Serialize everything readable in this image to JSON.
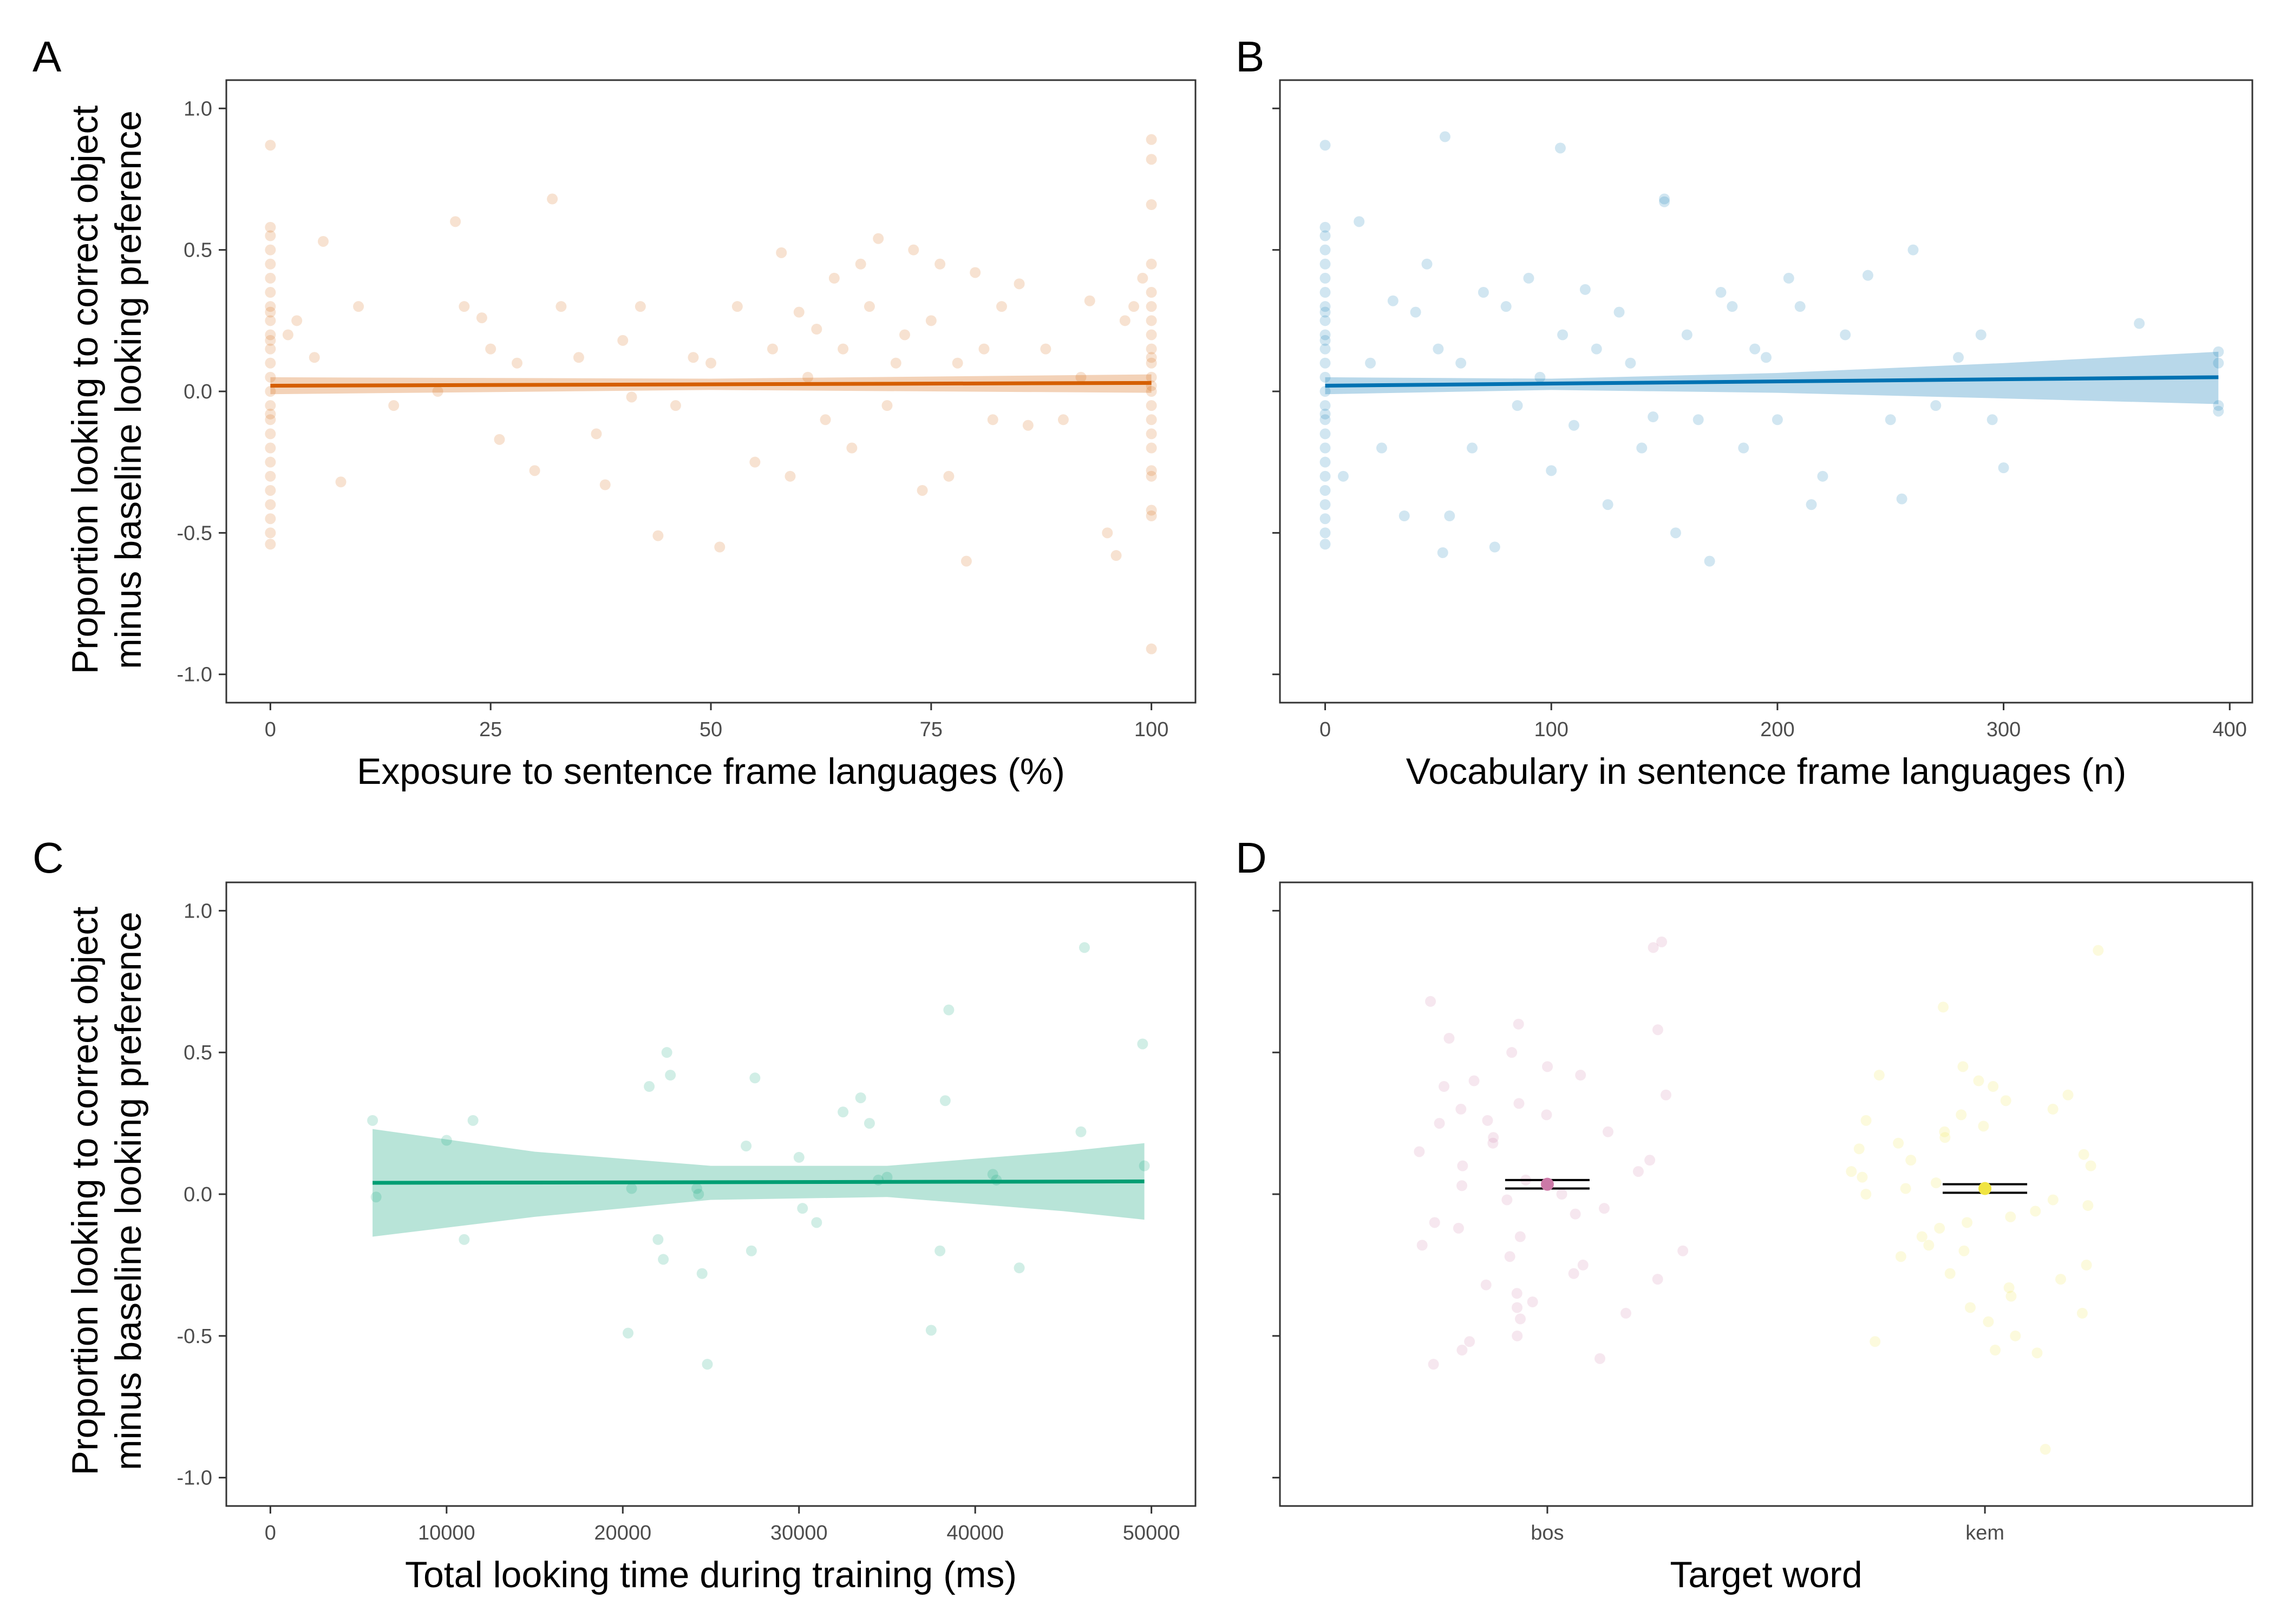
{
  "figure": {
    "panel_letters": [
      "A",
      "B",
      "C",
      "D"
    ],
    "shared_ylabel_line1": "Proportion looking to correct object",
    "shared_ylabel_line2": "minus baseline looking preference"
  },
  "chart_data": [
    {
      "panel": "A",
      "type": "scatter",
      "xlabel": "Exposure to sentence frame languages (%)",
      "ylabel": "Proportion looking to correct object minus baseline looking preference",
      "xlim": [
        -5,
        105
      ],
      "ylim": [
        -1.1,
        1.1
      ],
      "xticks": [
        0,
        25,
        50,
        75,
        100
      ],
      "yticks": [
        -1.0,
        -0.5,
        0.0,
        0.5,
        1.0
      ],
      "ytick_labels": [
        "-1.0",
        "-0.5",
        "0.0",
        "0.5",
        "1.0"
      ],
      "color": "#D55E00",
      "point_alpha": 0.18,
      "grid": false,
      "fit_line": {
        "x": [
          0,
          100
        ],
        "y": [
          0.02,
          0.03
        ]
      },
      "confidence_band": {
        "x": [
          0,
          50,
          100
        ],
        "lower": [
          -0.01,
          0.005,
          -0.005
        ],
        "upper": [
          0.05,
          0.045,
          0.06
        ]
      },
      "points": {
        "x": [
          0,
          0,
          0,
          0,
          0,
          0,
          0,
          0,
          0,
          0,
          0,
          0,
          0,
          0,
          0,
          0,
          0,
          0,
          0,
          0,
          0,
          0,
          0,
          0,
          0,
          0,
          0,
          0,
          2,
          3,
          5,
          6,
          8,
          10,
          14,
          19,
          21,
          22,
          24,
          25,
          26,
          28,
          30,
          32,
          33,
          35,
          37,
          38,
          40,
          41,
          42,
          44,
          46,
          48,
          50,
          51,
          53,
          55,
          57,
          58,
          59,
          60,
          61,
          62,
          63,
          64,
          65,
          66,
          67,
          68,
          69,
          70,
          71,
          72,
          73,
          74,
          75,
          76,
          77,
          78,
          79,
          80,
          81,
          82,
          83,
          85,
          86,
          88,
          90,
          92,
          93,
          95,
          96,
          97,
          98,
          99,
          100,
          100,
          100,
          100,
          100,
          100,
          100,
          100,
          100,
          100,
          100,
          100,
          100,
          100,
          100,
          100,
          100,
          100,
          100,
          100,
          100,
          100,
          100
        ],
        "y": [
          0.87,
          0.58,
          0.55,
          0.5,
          0.45,
          0.4,
          0.35,
          0.3,
          0.25,
          0.2,
          0.15,
          0.1,
          0.05,
          0.0,
          -0.05,
          -0.1,
          -0.15,
          -0.2,
          -0.25,
          -0.3,
          -0.35,
          -0.4,
          -0.45,
          -0.5,
          -0.54,
          0.18,
          -0.08,
          0.28,
          0.2,
          0.25,
          0.12,
          0.53,
          -0.32,
          0.3,
          -0.05,
          0.0,
          0.6,
          0.3,
          0.26,
          0.15,
          -0.17,
          0.1,
          -0.28,
          0.68,
          0.3,
          0.12,
          -0.15,
          -0.33,
          0.18,
          -0.02,
          0.3,
          -0.51,
          -0.05,
          0.12,
          0.1,
          -0.55,
          0.3,
          -0.25,
          0.15,
          0.49,
          -0.3,
          0.28,
          0.05,
          0.22,
          -0.1,
          0.4,
          0.15,
          -0.2,
          0.45,
          0.3,
          0.54,
          -0.05,
          0.1,
          0.2,
          0.5,
          -0.35,
          0.25,
          0.45,
          -0.3,
          0.1,
          -0.6,
          0.42,
          0.15,
          -0.1,
          0.3,
          0.38,
          -0.12,
          0.15,
          -0.1,
          0.05,
          0.32,
          -0.5,
          -0.58,
          0.25,
          0.3,
          0.4,
          0.89,
          0.82,
          0.66,
          0.45,
          0.35,
          0.25,
          0.15,
          0.05,
          -0.05,
          -0.15,
          -0.28,
          -0.42,
          -0.44,
          0.2,
          0.1,
          -0.1,
          -0.3,
          -0.91,
          0.0,
          0.3,
          -0.2,
          0.12,
          0.02
        ]
      }
    },
    {
      "panel": "B",
      "type": "scatter",
      "xlabel": "Vocabulary in sentence frame languages (n)",
      "ylabel": "",
      "xlim": [
        -20,
        410
      ],
      "ylim": [
        -1.1,
        1.1
      ],
      "xticks": [
        0,
        100,
        200,
        300,
        400
      ],
      "yticks": [
        -1.0,
        -0.5,
        0.0,
        0.5,
        1.0
      ],
      "color": "#0072B2",
      "point_alpha": 0.18,
      "grid": false,
      "fit_line": {
        "x": [
          0,
          395
        ],
        "y": [
          0.02,
          0.05
        ]
      },
      "confidence_band": {
        "x": [
          0,
          100,
          200,
          300,
          395
        ],
        "lower": [
          -0.01,
          0.005,
          -0.005,
          -0.025,
          -0.045
        ],
        "upper": [
          0.05,
          0.045,
          0.065,
          0.1,
          0.14
        ]
      },
      "points": {
        "x": [
          0,
          0,
          0,
          0,
          0,
          0,
          0,
          0,
          0,
          0,
          0,
          0,
          0,
          0,
          0,
          0,
          0,
          0,
          0,
          0,
          0,
          0,
          0,
          0,
          0,
          0,
          0,
          0,
          8,
          15,
          20,
          25,
          30,
          35,
          40,
          45,
          50,
          52,
          55,
          60,
          65,
          70,
          75,
          80,
          85,
          90,
          95,
          100,
          105,
          110,
          115,
          120,
          125,
          130,
          135,
          140,
          145,
          150,
          155,
          160,
          165,
          170,
          175,
          180,
          185,
          190,
          195,
          200,
          205,
          210,
          215,
          220,
          230,
          240,
          250,
          255,
          260,
          270,
          280,
          290,
          295,
          300,
          360,
          395,
          395,
          395,
          395,
          53,
          104,
          150
        ],
        "y": [
          0.87,
          0.58,
          0.55,
          0.5,
          0.45,
          0.4,
          0.35,
          0.3,
          0.25,
          0.2,
          0.15,
          0.1,
          0.05,
          0.0,
          -0.05,
          -0.1,
          -0.15,
          -0.2,
          -0.25,
          -0.3,
          -0.35,
          -0.4,
          -0.45,
          -0.5,
          -0.54,
          0.18,
          -0.08,
          0.28,
          -0.3,
          0.6,
          0.1,
          -0.2,
          0.32,
          -0.44,
          0.28,
          0.45,
          0.15,
          -0.57,
          -0.44,
          0.1,
          -0.2,
          0.35,
          -0.55,
          0.3,
          -0.05,
          0.4,
          0.05,
          -0.28,
          0.2,
          -0.12,
          0.36,
          0.15,
          -0.4,
          0.28,
          0.1,
          -0.2,
          -0.09,
          0.67,
          -0.5,
          0.2,
          -0.1,
          -0.6,
          0.35,
          0.3,
          -0.2,
          0.15,
          0.12,
          -0.1,
          0.4,
          0.3,
          -0.4,
          -0.3,
          0.2,
          0.41,
          -0.1,
          -0.38,
          0.5,
          -0.05,
          0.12,
          0.2,
          -0.1,
          -0.27,
          0.24,
          0.14,
          0.1,
          -0.05,
          -0.07,
          0.9,
          0.86,
          0.68
        ]
      }
    },
    {
      "panel": "C",
      "type": "scatter",
      "xlabel": "Total looking time during training (ms)",
      "ylabel": "Proportion looking to correct object minus baseline looking preference",
      "xlim": [
        -2500,
        52500
      ],
      "ylim": [
        -1.1,
        1.1
      ],
      "xticks": [
        0,
        10000,
        20000,
        30000,
        40000,
        50000
      ],
      "yticks": [
        -1.0,
        -0.5,
        0.0,
        0.5,
        1.0
      ],
      "ytick_labels": [
        "-1.0",
        "-0.5",
        "0.0",
        "0.5",
        "1.0"
      ],
      "color": "#009E73",
      "point_alpha": 0.18,
      "grid": false,
      "fit_line": {
        "x": [
          5800,
          49600
        ],
        "y": [
          0.04,
          0.045
        ]
      },
      "confidence_band": {
        "x": [
          5800,
          15000,
          25000,
          35000,
          45000,
          49600
        ],
        "lower": [
          -0.15,
          -0.08,
          -0.02,
          -0.01,
          -0.06,
          -0.09
        ],
        "upper": [
          0.23,
          0.15,
          0.1,
          0.1,
          0.15,
          0.18
        ]
      },
      "points": {
        "x": [
          5800,
          6000,
          10000,
          11000,
          11500,
          20300,
          20500,
          21500,
          22000,
          22300,
          22500,
          22700,
          24200,
          24300,
          24500,
          24800,
          27000,
          27300,
          27500,
          30000,
          30200,
          31000,
          32500,
          33500,
          34000,
          34500,
          35000,
          37500,
          38000,
          38300,
          38500,
          41000,
          41200,
          42500,
          46000,
          46200,
          49500,
          49600
        ],
        "y": [
          0.26,
          -0.01,
          0.19,
          -0.16,
          0.26,
          -0.49,
          0.02,
          0.38,
          -0.16,
          -0.23,
          0.5,
          0.42,
          0.02,
          0.0,
          -0.28,
          -0.6,
          0.17,
          -0.2,
          0.41,
          0.13,
          -0.05,
          -0.1,
          0.29,
          0.34,
          0.25,
          0.05,
          0.06,
          -0.48,
          -0.2,
          0.33,
          0.65,
          0.07,
          0.05,
          -0.26,
          0.22,
          0.87,
          0.53,
          0.1
        ]
      }
    },
    {
      "panel": "D",
      "type": "scatter",
      "xlabel": "Target word",
      "ylabel": "",
      "categories": [
        "bos",
        "kem"
      ],
      "ylim": [
        -1.1,
        1.1
      ],
      "yticks": [
        -1.0,
        -0.5,
        0.0,
        0.5,
        1.0
      ],
      "grid": false,
      "point_alpha": 0.18,
      "series": [
        {
          "category": "bos",
          "color": "#CC79A7",
          "mean": 0.035,
          "ci": [
            0.02,
            0.05
          ],
          "y": [
            0.87,
            0.89,
            0.68,
            0.6,
            0.58,
            0.55,
            0.5,
            0.45,
            0.42,
            0.4,
            0.38,
            0.35,
            0.32,
            0.3,
            0.28,
            0.26,
            0.25,
            0.22,
            0.2,
            0.18,
            0.15,
            0.12,
            0.1,
            0.08,
            0.05,
            0.03,
            0.0,
            -0.02,
            -0.05,
            -0.07,
            -0.1,
            -0.12,
            -0.15,
            -0.18,
            -0.2,
            -0.22,
            -0.25,
            -0.28,
            -0.3,
            -0.32,
            -0.35,
            -0.38,
            -0.4,
            -0.42,
            -0.44,
            -0.5,
            -0.52,
            -0.55,
            -0.58,
            -0.6
          ]
        },
        {
          "category": "kem",
          "color": "#F0E442",
          "mean": 0.02,
          "ci": [
            0.005,
            0.035
          ],
          "y": [
            0.86,
            0.66,
            0.45,
            0.42,
            0.4,
            0.38,
            0.35,
            0.33,
            0.3,
            0.28,
            0.26,
            0.24,
            0.22,
            0.2,
            0.18,
            0.16,
            0.14,
            0.12,
            0.1,
            0.08,
            0.06,
            0.04,
            0.02,
            0.0,
            -0.02,
            -0.04,
            -0.06,
            -0.08,
            -0.1,
            -0.12,
            -0.15,
            -0.18,
            -0.2,
            -0.22,
            -0.25,
            -0.28,
            -0.3,
            -0.33,
            -0.36,
            -0.4,
            -0.42,
            -0.45,
            -0.5,
            -0.52,
            -0.55,
            -0.56,
            -0.9
          ]
        }
      ]
    }
  ]
}
